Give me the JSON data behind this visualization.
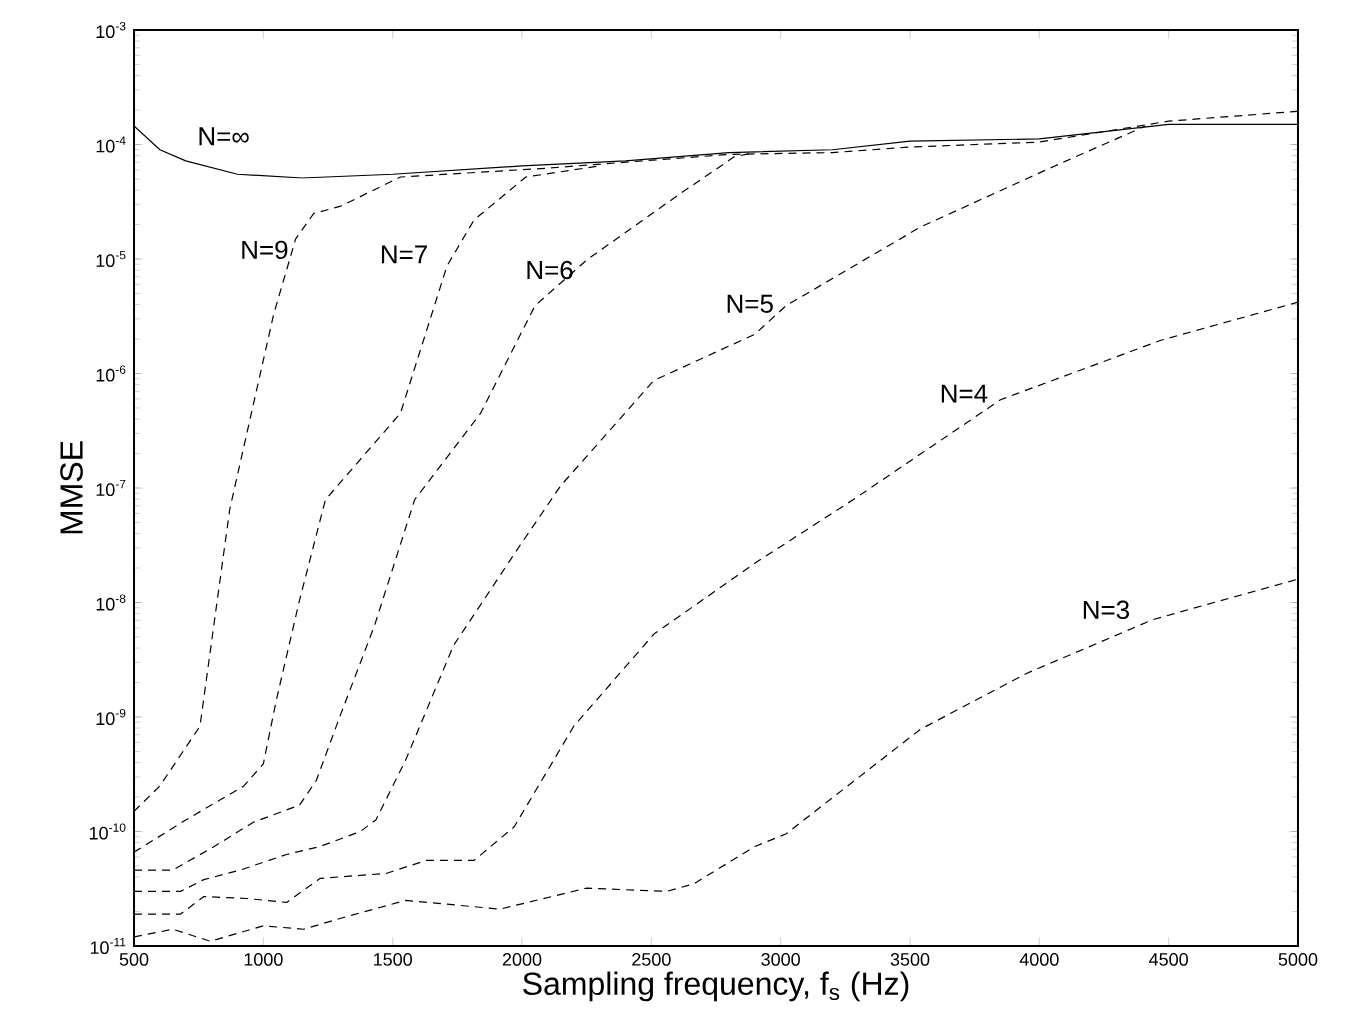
{
  "chart_data": {
    "type": "line",
    "xlabel": "Sampling frequency, f$_{s}$ (Hz)",
    "ylabel": "MMSE",
    "log": "y",
    "grid": false,
    "legend": false,
    "xlim": [
      500,
      5000
    ],
    "xticks": [
      500,
      1000,
      1500,
      2000,
      2500,
      3000,
      3500,
      4000,
      4500,
      5000
    ],
    "ylim": [
      1e-11,
      0.001
    ],
    "yticks": [
      {
        "value": 1e-11,
        "label": "10$^{-11}$"
      },
      {
        "value": 1e-10,
        "label": "10$^{-10}$"
      },
      {
        "value": 1e-09,
        "label": "10$^{-9}$"
      },
      {
        "value": 1e-08,
        "label": "10$^{-8}$"
      },
      {
        "value": 1e-07,
        "label": "10$^{-7}$"
      },
      {
        "value": 1e-06,
        "label": "10$^{-6}$"
      },
      {
        "value": 1e-05,
        "label": "10$^{-5}$"
      },
      {
        "value": 0.0001,
        "label": "10$^{-4}$"
      },
      {
        "value": 0.001,
        "label": "10$^{-3}$"
      }
    ],
    "series": [
      {
        "name": "N=∞",
        "color": "#000000",
        "line_style": "solid",
        "x": [
          500,
          600,
          700,
          900,
          1150,
          1500,
          2000,
          2400,
          2800,
          3200,
          3500,
          4000,
          4500,
          5000
        ],
        "values": [
          0.000145,
          9e-05,
          7.2e-05,
          5.5e-05,
          5.1e-05,
          5.5e-05,
          6.5e-05,
          7.2e-05,
          8.5e-05,
          9e-05,
          0.000107,
          0.000112,
          0.00015,
          0.00015
        ]
      },
      {
        "name": "N=9",
        "color": "#000000",
        "line_style": "dashed",
        "x": [
          500,
          600,
          755,
          870,
          1040,
          1125,
          1195,
          1300,
          1530,
          2090,
          2800,
          3200,
          3500,
          4000,
          4500,
          5000
        ],
        "values": [
          1.5e-10,
          2.5e-10,
          8.3e-10,
          6.5e-08,
          3.3e-06,
          1.5e-05,
          2.5e-05,
          2.9e-05,
          5.2e-05,
          6.2e-05,
          8.2e-05,
          8.5e-05,
          9.5e-05,
          0.000105,
          0.00016,
          0.000195
        ]
      },
      {
        "name": "N=7",
        "color": "#000000",
        "line_style": "dashed",
        "x": [
          500,
          700,
          925,
          1000,
          1050,
          1140,
          1240,
          1530,
          1710,
          1815,
          2015,
          2300
        ],
        "values": [
          6.6e-11,
          1.26e-10,
          2.5e-10,
          3.9e-10,
          1.4e-09,
          1.05e-08,
          7.9e-08,
          4.5e-07,
          8.7e-06,
          2.2e-05,
          5.2e-05,
          6.5e-05
        ]
      },
      {
        "name": "N=6",
        "color": "#000000",
        "line_style": "dashed",
        "x": [
          500,
          650,
          810,
          960,
          1140,
          1205,
          1300,
          1430,
          1585,
          1840,
          2050,
          2250,
          2610,
          2820,
          2900
        ],
        "values": [
          4.6e-11,
          4.6e-11,
          7.4e-11,
          1.2e-10,
          1.7e-10,
          2.8e-10,
          1.07e-09,
          6.3e-09,
          7.9e-08,
          4.5e-07,
          3.9e-06,
          9.8e-06,
          3.7e-05,
          7.8e-05,
          8.5e-05
        ]
      },
      {
        "name": "N=5",
        "color": "#000000",
        "line_style": "dashed",
        "x": [
          500,
          680,
          770,
          910,
          1090,
          1220,
          1375,
          1435,
          1550,
          1735,
          1990,
          2150,
          2510,
          2900,
          3020,
          3540,
          4060,
          4410
        ],
        "values": [
          3e-11,
          3e-11,
          3.8e-11,
          4.6e-11,
          6.3e-11,
          7.4e-11,
          1e-10,
          1.26e-10,
          4.2e-10,
          4.2e-09,
          3.1e-08,
          1.05e-07,
          8.7e-07,
          2.2e-06,
          3.9e-06,
          1.9e-05,
          6.5e-05,
          0.000145
        ]
      },
      {
        "name": "N=4",
        "color": "#000000",
        "line_style": "dashed",
        "x": [
          500,
          680,
          770,
          935,
          1090,
          1220,
          1475,
          1630,
          1815,
          1970,
          2200,
          2510,
          2900,
          3280,
          3850,
          4470,
          5000
        ],
        "values": [
          1.9e-11,
          1.9e-11,
          2.7e-11,
          2.6e-11,
          2.4e-11,
          3.9e-11,
          4.3e-11,
          5.6e-11,
          5.6e-11,
          1.1e-10,
          8.3e-10,
          5.3e-09,
          2.2e-08,
          7.9e-08,
          5.9e-07,
          1.95e-06,
          4.2e-06
        ]
      },
      {
        "name": "N=3",
        "color": "#000000",
        "line_style": "dashed",
        "x": [
          500,
          650,
          795,
          1000,
          1155,
          1320,
          1550,
          1915,
          2250,
          2560,
          2665,
          2900,
          3020,
          3540,
          3950,
          4440,
          5000
        ],
        "values": [
          1.2e-11,
          1.4e-11,
          1.1e-11,
          1.5e-11,
          1.4e-11,
          1.8e-11,
          2.5e-11,
          2.1e-11,
          3.2e-11,
          3e-11,
          3.5e-11,
          7.4e-11,
          9.5e-11,
          7.8e-10,
          2.4e-09,
          7.1e-09,
          1.6e-08
        ]
      }
    ]
  }
}
